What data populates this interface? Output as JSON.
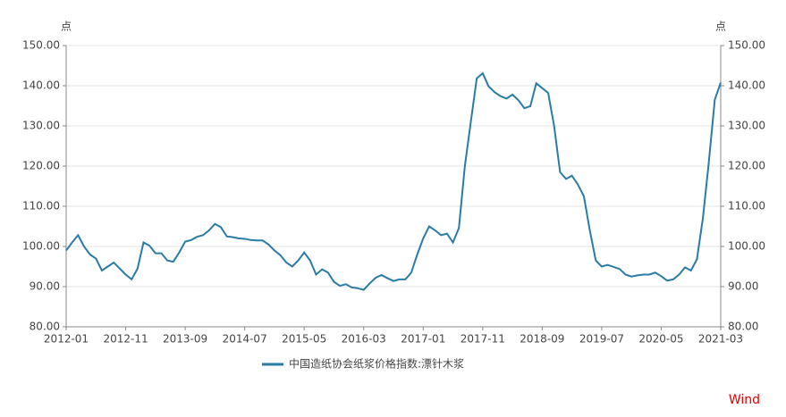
{
  "chart_data": {
    "type": "line",
    "y_unit": "点",
    "y2_unit": "点",
    "source": "Wind",
    "categories": [
      "2012-01",
      null,
      null,
      null,
      null,
      null,
      null,
      null,
      null,
      null,
      "2012-11",
      null,
      null,
      null,
      null,
      null,
      null,
      null,
      null,
      null,
      "2013-09",
      null,
      null,
      null,
      null,
      null,
      null,
      null,
      null,
      null,
      "2014-07",
      null,
      null,
      null,
      null,
      null,
      null,
      null,
      null,
      null,
      "2015-05",
      null,
      null,
      null,
      null,
      null,
      null,
      null,
      null,
      null,
      "2016-03",
      null,
      null,
      null,
      null,
      null,
      null,
      null,
      null,
      null,
      "2017-01",
      null,
      null,
      null,
      null,
      null,
      null,
      null,
      null,
      null,
      "2017-11",
      null,
      null,
      null,
      null,
      null,
      null,
      null,
      null,
      null,
      "2018-09",
      null,
      null,
      null,
      null,
      null,
      null,
      null,
      null,
      null,
      "2019-07",
      null,
      null,
      null,
      null,
      null,
      null,
      null,
      null,
      null,
      "2020-05",
      null,
      null,
      null,
      null,
      null,
      null,
      null,
      null,
      null,
      "2021-03"
    ],
    "series": [
      {
        "name": "中国造纸协会纸浆价格指数:漂针木浆",
        "color": "#2a7ca6",
        "values": [
          99,
          101,
          102.8,
          100,
          98,
          97,
          94,
          95,
          96,
          94.5,
          93,
          91.8,
          94.5,
          101,
          100.2,
          98.3,
          98.3,
          96.5,
          96.2,
          98.5,
          101.2,
          101.6,
          102.4,
          102.8,
          104,
          105.6,
          104.8,
          102.5,
          102.3,
          102,
          101.9,
          101.6,
          101.5,
          101.5,
          100.5,
          99,
          97.8,
          96,
          95,
          96.5,
          98.5,
          96.5,
          93,
          94.3,
          93.5,
          91.2,
          90.2,
          90.6,
          89.8,
          89.6,
          89.2,
          90.8,
          92.2,
          92.9,
          92.1,
          91.4,
          91.8,
          91.8,
          93.5,
          98,
          102,
          105,
          104,
          102.8,
          103.2,
          101,
          104.6,
          120,
          131,
          141.8,
          143.1,
          139.8,
          138.4,
          137.4,
          136.8,
          137.8,
          136.4,
          134.4,
          134.9,
          140.6,
          139.4,
          138.2,
          130,
          118.5,
          116.8,
          117.6,
          115.4,
          112.5,
          104,
          96.5,
          95,
          95.4,
          94.9,
          94.4,
          93,
          92.5,
          92.8,
          93,
          93,
          93.5,
          92.6,
          91.5,
          91.8,
          93,
          94.8,
          94,
          96.8,
          107,
          121,
          136.5,
          140.8
        ]
      }
    ],
    "ylim": [
      80,
      150
    ],
    "yticks": [
      {
        "value": 80,
        "label": "80.00"
      },
      {
        "value": 90,
        "label": "90.00"
      },
      {
        "value": 100,
        "label": "100.00"
      },
      {
        "value": 110,
        "label": "110.00"
      },
      {
        "value": 120,
        "label": "120.00"
      },
      {
        "value": 130,
        "label": "130.00"
      },
      {
        "value": 140,
        "label": "140.00"
      },
      {
        "value": 150,
        "label": "150.00"
      }
    ],
    "y2lim": [
      80,
      150
    ],
    "y2ticks": [
      {
        "value": 80,
        "label": "80.00"
      },
      {
        "value": 90,
        "label": "90.00"
      },
      {
        "value": 100,
        "label": "100.00"
      },
      {
        "value": 110,
        "label": "110.00"
      },
      {
        "value": 120,
        "label": "120.00"
      },
      {
        "value": 130,
        "label": "130.00"
      },
      {
        "value": 140,
        "label": "140.00"
      },
      {
        "value": 150,
        "label": "150.00"
      }
    ],
    "grid": true,
    "legend": "bottom"
  }
}
